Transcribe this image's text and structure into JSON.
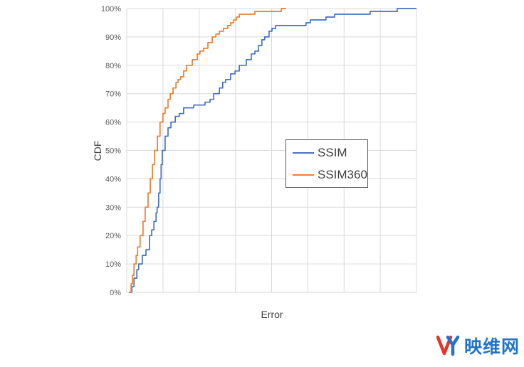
{
  "page": {
    "background": "#ffffff"
  },
  "chart_data": {
    "type": "line",
    "subtype": "empirical-cdf-step",
    "title": "",
    "xlabel": "Error",
    "ylabel": "CDF",
    "xlim": [
      0,
      8
    ],
    "ylim": [
      0,
      100
    ],
    "grid": true,
    "x_tick_labels_visible": false,
    "x_gridlines": [
      0,
      1,
      2,
      3,
      4,
      5,
      6,
      7,
      8
    ],
    "y_ticks": [
      {
        "value": 0,
        "label": "0%"
      },
      {
        "value": 10,
        "label": "10%"
      },
      {
        "value": 20,
        "label": "20%"
      },
      {
        "value": 30,
        "label": "30%"
      },
      {
        "value": 40,
        "label": "40%"
      },
      {
        "value": 50,
        "label": "50%"
      },
      {
        "value": 60,
        "label": "60%"
      },
      {
        "value": 70,
        "label": "70%"
      },
      {
        "value": 80,
        "label": "80%"
      },
      {
        "value": 90,
        "label": "90%"
      },
      {
        "value": 100,
        "label": "100%"
      }
    ],
    "legend_position": "inside-center-right",
    "series": [
      {
        "name": "SSIM",
        "color": "#4472C4",
        "points": [
          [
            0.06,
            0
          ],
          [
            0.14,
            2
          ],
          [
            0.2,
            5
          ],
          [
            0.28,
            8
          ],
          [
            0.33,
            10
          ],
          [
            0.43,
            13
          ],
          [
            0.53,
            15
          ],
          [
            0.63,
            20
          ],
          [
            0.69,
            22
          ],
          [
            0.75,
            25
          ],
          [
            0.81,
            28
          ],
          [
            0.84,
            30
          ],
          [
            0.88,
            35
          ],
          [
            0.92,
            40
          ],
          [
            0.95,
            45
          ],
          [
            0.98,
            50
          ],
          [
            1.06,
            55
          ],
          [
            1.14,
            58
          ],
          [
            1.22,
            60
          ],
          [
            1.34,
            62
          ],
          [
            1.45,
            63
          ],
          [
            1.57,
            65
          ],
          [
            1.85,
            66
          ],
          [
            2.16,
            67
          ],
          [
            2.3,
            68
          ],
          [
            2.4,
            70
          ],
          [
            2.56,
            72
          ],
          [
            2.65,
            74
          ],
          [
            2.73,
            75
          ],
          [
            2.87,
            77
          ],
          [
            2.99,
            78
          ],
          [
            3.11,
            80
          ],
          [
            3.3,
            82
          ],
          [
            3.44,
            84
          ],
          [
            3.54,
            85
          ],
          [
            3.64,
            87
          ],
          [
            3.73,
            89
          ],
          [
            3.81,
            90
          ],
          [
            3.93,
            92
          ],
          [
            4.01,
            93
          ],
          [
            4.11,
            94
          ],
          [
            4.95,
            95
          ],
          [
            5.07,
            96
          ],
          [
            5.5,
            97
          ],
          [
            5.74,
            98
          ],
          [
            6.72,
            99
          ],
          [
            7.47,
            100
          ],
          [
            8.0,
            100
          ]
        ]
      },
      {
        "name": "SSIM360",
        "color": "#ED7D31",
        "points": [
          [
            0.06,
            0
          ],
          [
            0.12,
            3
          ],
          [
            0.16,
            6
          ],
          [
            0.2,
            10
          ],
          [
            0.26,
            13
          ],
          [
            0.3,
            16
          ],
          [
            0.37,
            20
          ],
          [
            0.45,
            25
          ],
          [
            0.51,
            30
          ],
          [
            0.59,
            35
          ],
          [
            0.65,
            40
          ],
          [
            0.71,
            45
          ],
          [
            0.77,
            50
          ],
          [
            0.85,
            55
          ],
          [
            0.92,
            60
          ],
          [
            1.0,
            63
          ],
          [
            1.06,
            65
          ],
          [
            1.14,
            68
          ],
          [
            1.2,
            70
          ],
          [
            1.28,
            72
          ],
          [
            1.36,
            74
          ],
          [
            1.42,
            75
          ],
          [
            1.49,
            76
          ],
          [
            1.57,
            78
          ],
          [
            1.65,
            80
          ],
          [
            1.81,
            82
          ],
          [
            1.95,
            84
          ],
          [
            2.02,
            85
          ],
          [
            2.12,
            86
          ],
          [
            2.24,
            88
          ],
          [
            2.36,
            90
          ],
          [
            2.46,
            91
          ],
          [
            2.56,
            92
          ],
          [
            2.67,
            93
          ],
          [
            2.79,
            94
          ],
          [
            2.87,
            95
          ],
          [
            2.95,
            96
          ],
          [
            3.03,
            97
          ],
          [
            3.11,
            98
          ],
          [
            3.54,
            99
          ],
          [
            4.27,
            100
          ],
          [
            4.4,
            100
          ]
        ]
      }
    ]
  },
  "watermark": {
    "text": "映维网",
    "colors": {
      "red": "#e5352b",
      "blue": "#2473c8"
    }
  }
}
